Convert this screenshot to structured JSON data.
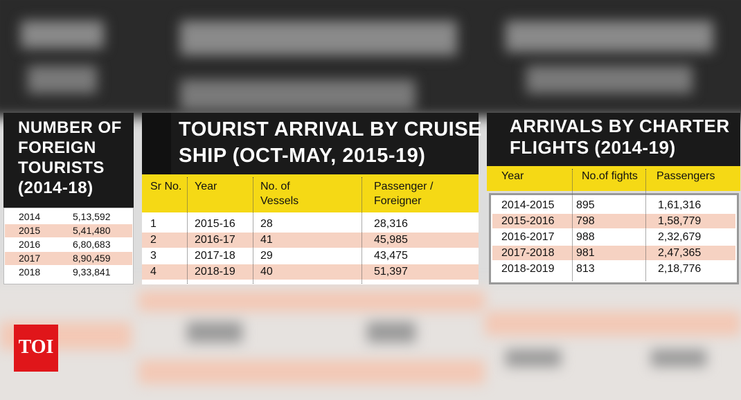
{
  "logo": "TOI",
  "tables": [
    {
      "title_lines": [
        "NUMBER OF",
        "FOREIGN",
        "TOURISTS",
        "(2014-18)"
      ],
      "rows": [
        [
          "2014",
          "5,13,592"
        ],
        [
          "2015",
          "5,41,480"
        ],
        [
          "2016",
          "6,80,683"
        ],
        [
          "2017",
          "8,90,459"
        ],
        [
          "2018",
          "9,33,841"
        ]
      ]
    },
    {
      "title_lines": [
        "TOURIST ARRIVAL BY CRUISE",
        "SHIP (OCT-MAY, 2015-19)"
      ],
      "headers": [
        "Sr No.",
        "Year",
        "No. of Vessels",
        "Passenger / Foreigner"
      ],
      "rows": [
        [
          "1",
          "2015-16",
          "28",
          "28,316"
        ],
        [
          "2",
          "2016-17",
          "41",
          "45,985"
        ],
        [
          "3",
          "2017-18",
          "29",
          "43,475"
        ],
        [
          "4",
          "2018-19",
          "40",
          "51,397"
        ]
      ]
    },
    {
      "title_lines": [
        "ARRIVALS BY CHARTER",
        "FLIGHTS (2014-19)"
      ],
      "headers": [
        "Year",
        "No.of fights",
        "Passengers"
      ],
      "rows": [
        [
          "2014-2015",
          "895",
          "1,61,316"
        ],
        [
          "2015-2016",
          "798",
          "1,58,779"
        ],
        [
          "2016-2017",
          "988",
          "2,32,679"
        ],
        [
          "2017-2018",
          "981",
          "2,47,365"
        ],
        [
          "2018-2019",
          "813",
          "2,18,776"
        ]
      ]
    }
  ]
}
